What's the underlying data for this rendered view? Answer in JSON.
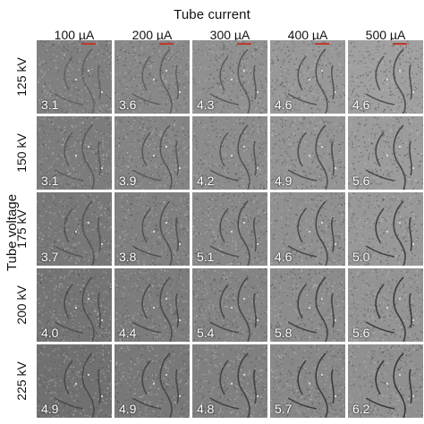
{
  "x_title": "Tube current",
  "y_title": "Tube voltage",
  "columns": [
    "100 µA",
    "200 µA",
    "300 µA",
    "400 µA",
    "500 µA"
  ],
  "rows": [
    "125 kV",
    "150 kV",
    "175 kV",
    "200 kV",
    "225 kV"
  ],
  "values": [
    [
      "3.1",
      "3.6",
      "4.3",
      "4.6",
      "4.6"
    ],
    [
      "3.1",
      "3.9",
      "4.2",
      "4.9",
      "5.6"
    ],
    [
      "3.7",
      "3.8",
      "5.1",
      "4.6",
      "5.0"
    ],
    [
      "4.0",
      "4.4",
      "5.4",
      "5.8",
      "5.6"
    ],
    [
      "4.9",
      "4.9",
      "4.8",
      "5.7",
      "6.2"
    ]
  ],
  "colors": {
    "tile_dark": "#6d6d6d",
    "tile_light": "#b8b8b8",
    "fibre": "#2a2a2a",
    "scale_mark": "#c0392b"
  }
}
